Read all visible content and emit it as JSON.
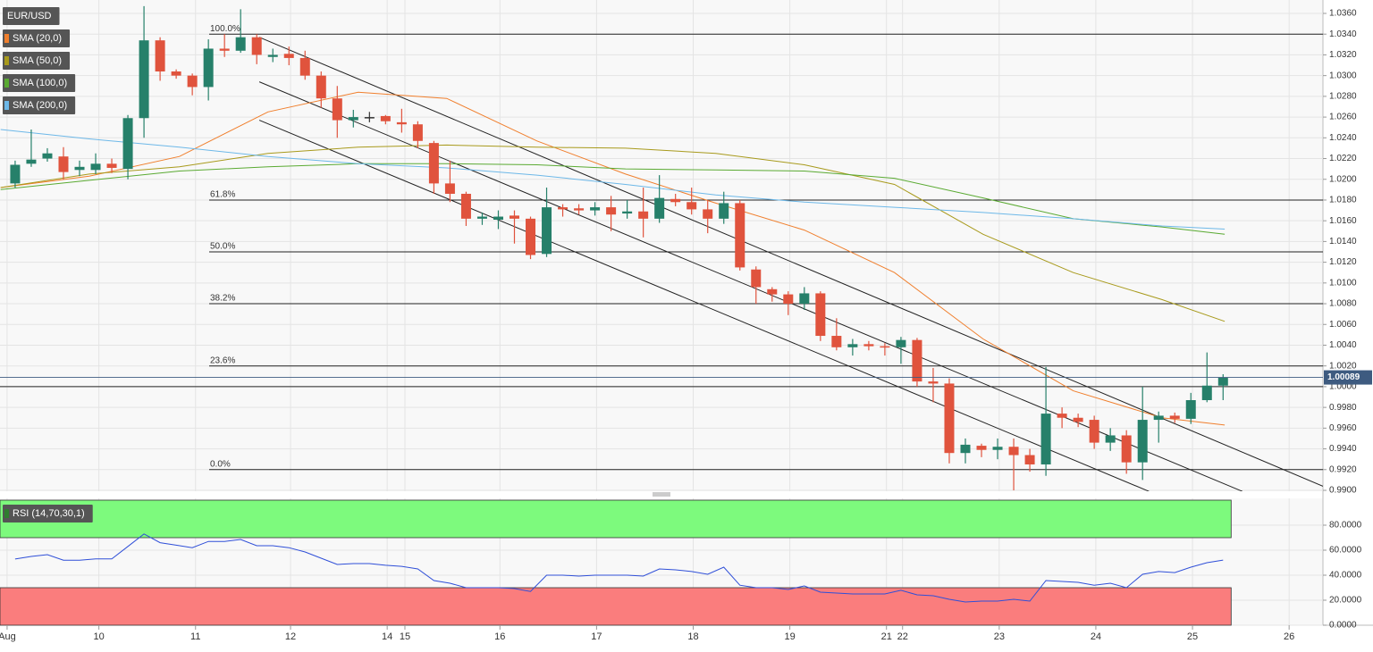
{
  "chart_data": [
    {
      "type": "candlestick",
      "title": "EUR/USD",
      "xlim": [
        -0.94,
        81.2
      ],
      "xticks": [
        {
          "value": -0.5,
          "label": "Aug"
        },
        {
          "value": 5.2,
          "label": "10"
        },
        {
          "value": 11.2,
          "label": "11"
        },
        {
          "value": 17.1,
          "label": "12"
        },
        {
          "value": 23.1,
          "label": "14"
        },
        {
          "value": 24.2,
          "label": "15"
        },
        {
          "value": 30.1,
          "label": "16"
        },
        {
          "value": 36.1,
          "label": "17"
        },
        {
          "value": 42.1,
          "label": "18"
        },
        {
          "value": 48.1,
          "label": "19"
        },
        {
          "value": 54.1,
          "label": "21"
        },
        {
          "value": 55.1,
          "label": "22"
        },
        {
          "value": 61.1,
          "label": "23"
        },
        {
          "value": 67.1,
          "label": "24"
        },
        {
          "value": 73.1,
          "label": "25"
        },
        {
          "value": 79.1,
          "label": "26"
        }
      ],
      "ylim": [
        0.99,
        1.036
      ],
      "yticks": [
        {
          "value": 0.99,
          "label": "0.9900"
        },
        {
          "value": 0.992,
          "label": "0.9920"
        },
        {
          "value": 0.994,
          "label": "0.9940"
        },
        {
          "value": 0.996,
          "label": "0.9960"
        },
        {
          "value": 0.998,
          "label": "0.9980"
        },
        {
          "value": 1.0,
          "label": "1.0000"
        },
        {
          "value": 1.002,
          "label": "1.0020"
        },
        {
          "value": 1.004,
          "label": "1.0040"
        },
        {
          "value": 1.006,
          "label": "1.0060"
        },
        {
          "value": 1.008,
          "label": "1.0080"
        },
        {
          "value": 1.01,
          "label": "1.0100"
        },
        {
          "value": 1.012,
          "label": "1.0120"
        },
        {
          "value": 1.014,
          "label": "1.0140"
        },
        {
          "value": 1.016,
          "label": "1.0160"
        },
        {
          "value": 1.018,
          "label": "1.0180"
        },
        {
          "value": 1.02,
          "label": "1.0200"
        },
        {
          "value": 1.022,
          "label": "1.0220"
        },
        {
          "value": 1.024,
          "label": "1.0240"
        },
        {
          "value": 1.026,
          "label": "1.0260"
        },
        {
          "value": 1.028,
          "label": "1.0280"
        },
        {
          "value": 1.03,
          "label": "1.0300"
        },
        {
          "value": 1.032,
          "label": "1.0320"
        },
        {
          "value": 1.034,
          "label": "1.0340"
        },
        {
          "value": 1.036,
          "label": "1.0360"
        }
      ],
      "grid": true,
      "up_color": "#26806a",
      "down_color": "#e0533d",
      "doji_color": "#333333",
      "open": [
        1.0196,
        1.0215,
        1.022,
        1.0222,
        1.0209,
        1.0209,
        1.0215,
        1.021,
        1.0259,
        1.0334,
        1.0304,
        1.03,
        1.0289,
        1.0326,
        1.0324,
        1.0337,
        1.0318,
        1.0321,
        1.0317,
        1.03,
        1.0278,
        1.0257,
        1.026,
        1.0261,
        1.0255,
        1.0253,
        1.0235,
        1.0196,
        1.0186,
        1.0162,
        1.0161,
        1.0165,
        1.0162,
        1.0128,
        1.0173,
        1.0172,
        1.017,
        1.0173,
        1.0167,
        1.0169,
        1.0162,
        1.0181,
        1.0178,
        1.0171,
        1.0162,
        1.0177,
        1.0113,
        1.0094,
        1.0089,
        1.008,
        1.009,
        1.0049,
        1.0038,
        1.0041,
        1.0039,
        1.0038,
        1.0045,
        1.0005,
        1.0003,
        0.9936,
        0.9943,
        0.9939,
        0.9942,
        0.9934,
        0.9925,
        0.9974,
        0.997,
        0.9968,
        0.9946,
        0.9953,
        0.9927,
        0.9968,
        0.9972,
        0.9969,
        0.9987,
        1.0001
      ],
      "high": [
        1.0218,
        1.0248,
        1.023,
        1.0231,
        1.0218,
        1.0225,
        1.022,
        1.0262,
        1.0367,
        1.0337,
        1.0306,
        1.0302,
        1.0335,
        1.034,
        1.0364,
        1.034,
        1.0326,
        1.0328,
        1.0324,
        1.0304,
        1.029,
        1.0267,
        1.0265,
        1.0262,
        1.0268,
        1.0256,
        1.0237,
        1.0218,
        1.0188,
        1.0168,
        1.017,
        1.017,
        1.0164,
        1.0192,
        1.0176,
        1.0176,
        1.0178,
        1.0184,
        1.018,
        1.0192,
        1.0204,
        1.0186,
        1.0192,
        1.018,
        1.0188,
        1.018,
        1.0116,
        1.0096,
        1.0092,
        1.0096,
        1.0092,
        1.0066,
        1.0046,
        1.0044,
        1.0042,
        1.0048,
        1.0047,
        1.0018,
        1.0008,
        0.995,
        0.9945,
        0.995,
        0.995,
        0.994,
        1.0019,
        0.998,
        0.9974,
        0.9972,
        0.996,
        0.9958,
        1.0,
        0.9976,
        0.9975,
        0.9994,
        1.0033,
        1.0012
      ],
      "low": [
        1.0192,
        1.0212,
        1.0217,
        1.02,
        1.0203,
        1.0205,
        1.0206,
        1.02,
        1.024,
        1.0295,
        1.0297,
        1.0281,
        1.0276,
        1.0318,
        1.0322,
        1.0311,
        1.0313,
        1.031,
        1.0296,
        1.0269,
        1.024,
        1.025,
        1.0255,
        1.0253,
        1.0245,
        1.023,
        1.0186,
        1.0178,
        1.0155,
        1.0156,
        1.0152,
        1.0138,
        1.0123,
        1.0125,
        1.0164,
        1.0166,
        1.0165,
        1.015,
        1.0162,
        1.0144,
        1.0158,
        1.0174,
        1.0166,
        1.0148,
        1.0157,
        1.0112,
        1.008,
        1.0082,
        1.0069,
        1.0074,
        1.0044,
        1.0035,
        1.003,
        1.0035,
        1.003,
        1.0022,
        1.0,
        0.9985,
        0.9926,
        0.9926,
        0.9932,
        0.993,
        0.99,
        0.9918,
        0.9914,
        0.996,
        0.9961,
        0.994,
        0.9938,
        0.9916,
        0.991,
        0.9946,
        0.9965,
        0.9964,
        0.9985,
        0.9987
      ],
      "close": [
        1.0214,
        1.0219,
        1.0225,
        1.0207,
        1.0212,
        1.0215,
        1.0211,
        1.0259,
        1.0334,
        1.0304,
        1.03,
        1.0289,
        1.0326,
        1.0324,
        1.0337,
        1.032,
        1.032,
        1.0317,
        1.03,
        1.0278,
        1.0257,
        1.026,
        1.026,
        1.0256,
        1.0253,
        1.0237,
        1.0196,
        1.0186,
        1.0162,
        1.0164,
        1.0164,
        1.0162,
        1.0127,
        1.0173,
        1.0171,
        1.017,
        1.0173,
        1.0166,
        1.0169,
        1.0162,
        1.0182,
        1.0178,
        1.0171,
        1.0162,
        1.0177,
        1.0115,
        1.0096,
        1.0089,
        1.008,
        1.009,
        1.0049,
        1.0038,
        1.0041,
        1.0039,
        1.0038,
        1.0045,
        1.0005,
        1.0003,
        0.9936,
        0.9944,
        0.9939,
        0.9942,
        0.9934,
        0.9925,
        0.9974,
        0.997,
        0.9966,
        0.9946,
        0.9953,
        0.9927,
        0.9968,
        0.9972,
        0.9969,
        0.9987,
        1.0001,
        1.0009
      ],
      "overlays": [
        {
          "name": "SMA (20,0)",
          "color": "#f07f2d",
          "x": [
            -0.9,
            4.6,
            10.2,
            15.7,
            21.3,
            26.8,
            32.4,
            37.9,
            43.5,
            49.0,
            54.6,
            60.1,
            65.7,
            71.2,
            75.1
          ],
          "values": [
            1.0192,
            1.0203,
            1.0222,
            1.0265,
            1.0284,
            1.0278,
            1.0237,
            1.0205,
            1.0177,
            1.0151,
            1.011,
            1.0046,
            0.9996,
            0.997,
            0.9963
          ]
        },
        {
          "name": "SMA (50,0)",
          "color": "#a89a1c",
          "x": [
            -0.9,
            4.6,
            10.2,
            15.7,
            21.3,
            26.8,
            32.4,
            37.9,
            43.5,
            49.0,
            54.6,
            60.1,
            65.7,
            71.2,
            75.1
          ],
          "values": [
            1.0192,
            1.0205,
            1.0212,
            1.0225,
            1.0231,
            1.0233,
            1.0231,
            1.023,
            1.0225,
            1.0214,
            1.0195,
            1.0147,
            1.011,
            1.0084,
            1.0063
          ]
        },
        {
          "name": "SMA (100,0)",
          "color": "#5aaa32",
          "x": [
            -0.9,
            4.6,
            10.2,
            15.7,
            21.3,
            26.8,
            32.4,
            37.9,
            43.5,
            49.0,
            54.6,
            60.1,
            65.7,
            71.2,
            75.1
          ],
          "values": [
            1.019,
            1.0199,
            1.0208,
            1.0212,
            1.0215,
            1.0215,
            1.0214,
            1.021,
            1.0209,
            1.0208,
            1.0201,
            1.0182,
            1.0162,
            1.0154,
            1.0147
          ]
        },
        {
          "name": "SMA (200,0)",
          "color": "#6db8e8",
          "x": [
            -0.9,
            4.6,
            10.2,
            15.7,
            21.3,
            26.8,
            32.4,
            37.9,
            43.5,
            49.0,
            54.6,
            60.1,
            65.7,
            71.2,
            75.1
          ],
          "values": [
            1.0248,
            1.0239,
            1.0231,
            1.0222,
            1.0215,
            1.0211,
            1.0204,
            1.0195,
            1.0185,
            1.0178,
            1.0173,
            1.0168,
            1.0162,
            1.0155,
            1.0152
          ]
        }
      ],
      "fib_levels": [
        {
          "label": "100.0%",
          "value": 1.034
        },
        {
          "label": "61.8%",
          "value": 1.018
        },
        {
          "label": "50.0%",
          "value": 1.013
        },
        {
          "label": "38.2%",
          "value": 1.008
        },
        {
          "label": "23.6%",
          "value": 1.002
        },
        {
          "label": "0.0%",
          "value": 0.992
        }
      ],
      "channel_lines": [
        {
          "x": [
            15.16,
            81.2
          ],
          "values": [
            1.0337,
            0.9904
          ]
        },
        {
          "x": [
            15.16,
            76.2
          ],
          "values": [
            1.0294,
            0.9899
          ]
        },
        {
          "x": [
            15.16,
            70.4
          ],
          "values": [
            1.0257,
            0.9899
          ]
        }
      ],
      "reference_line": 1.0,
      "last_price": 1.00089,
      "last_price_color": "#3e5b80"
    },
    {
      "type": "line",
      "name": "RSI (14,70,30,1)",
      "color": "#2f4fd8",
      "values": [
        52.9,
        55,
        56.4,
        52,
        52,
        53,
        53,
        63,
        73,
        66,
        64,
        62,
        67,
        67,
        68.6,
        63.6,
        63.6,
        62,
        58.6,
        53.6,
        48.6,
        49.3,
        49.3,
        47.9,
        47.1,
        45,
        35.7,
        33.6,
        30,
        30,
        30,
        29.3,
        27,
        40,
        40,
        39.3,
        40,
        40,
        40,
        39.3,
        45,
        44.3,
        42.9,
        40.7,
        46.4,
        32,
        30,
        30,
        28.6,
        31.4,
        26.4,
        25.7,
        25,
        25,
        25,
        27.9,
        24.3,
        23.6,
        20.7,
        18.6,
        19.3,
        19.3,
        20.7,
        19.3,
        35.7,
        35,
        34.3,
        32,
        33.6,
        30,
        40.7,
        42.9,
        42.1,
        46.4,
        50,
        52.1
      ],
      "ylim": [
        0,
        100
      ],
      "yticks": [
        {
          "value": 0,
          "label": "0.0000"
        },
        {
          "value": 20,
          "label": "20.0000"
        },
        {
          "value": 40,
          "label": "40.0000"
        },
        {
          "value": 60,
          "label": "60.0000"
        },
        {
          "value": 80,
          "label": "80.0000"
        }
      ],
      "overbought": 70,
      "oversold": 30,
      "overbought_color": "#7dfa7d",
      "oversold_color": "#fa7d7d"
    }
  ]
}
